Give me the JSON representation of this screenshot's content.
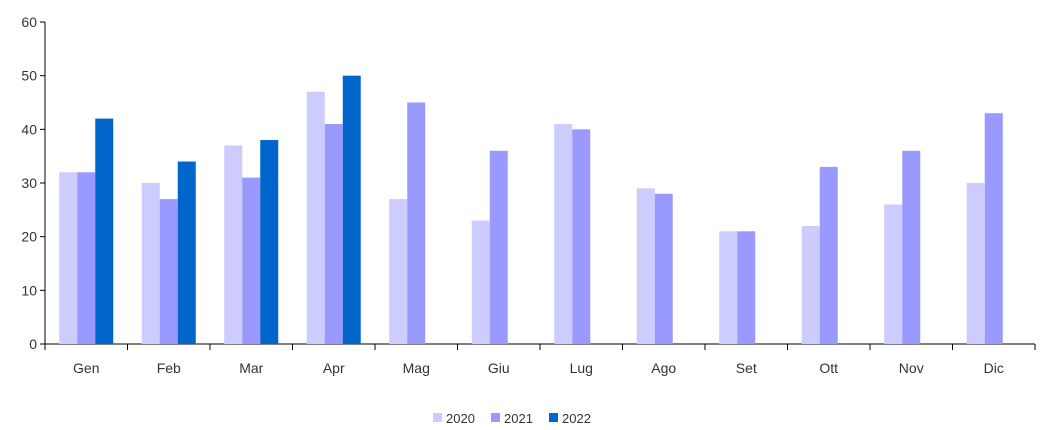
{
  "chart_data": {
    "type": "bar",
    "title": "",
    "xlabel": "",
    "ylabel": "",
    "categories": [
      "Gen",
      "Feb",
      "Mar",
      "Apr",
      "Mag",
      "Giu",
      "Lug",
      "Ago",
      "Set",
      "Ott",
      "Nov",
      "Dic"
    ],
    "series": [
      {
        "name": "2020",
        "color": "#ccccff",
        "values": [
          32,
          30,
          37,
          47,
          27,
          23,
          41,
          29,
          21,
          22,
          26,
          30
        ]
      },
      {
        "name": "2021",
        "color": "#9999ff",
        "values": [
          32,
          27,
          31,
          41,
          45,
          36,
          40,
          28,
          21,
          33,
          36,
          43
        ]
      },
      {
        "name": "2022",
        "color": "#0066cc",
        "values": [
          42,
          34,
          38,
          50,
          null,
          null,
          null,
          null,
          null,
          null,
          null,
          null
        ]
      }
    ],
    "ylim": [
      0,
      60
    ],
    "yticks": [
      0,
      10,
      20,
      30,
      40,
      50,
      60
    ],
    "grid": false,
    "legend_position": "bottom-center"
  }
}
